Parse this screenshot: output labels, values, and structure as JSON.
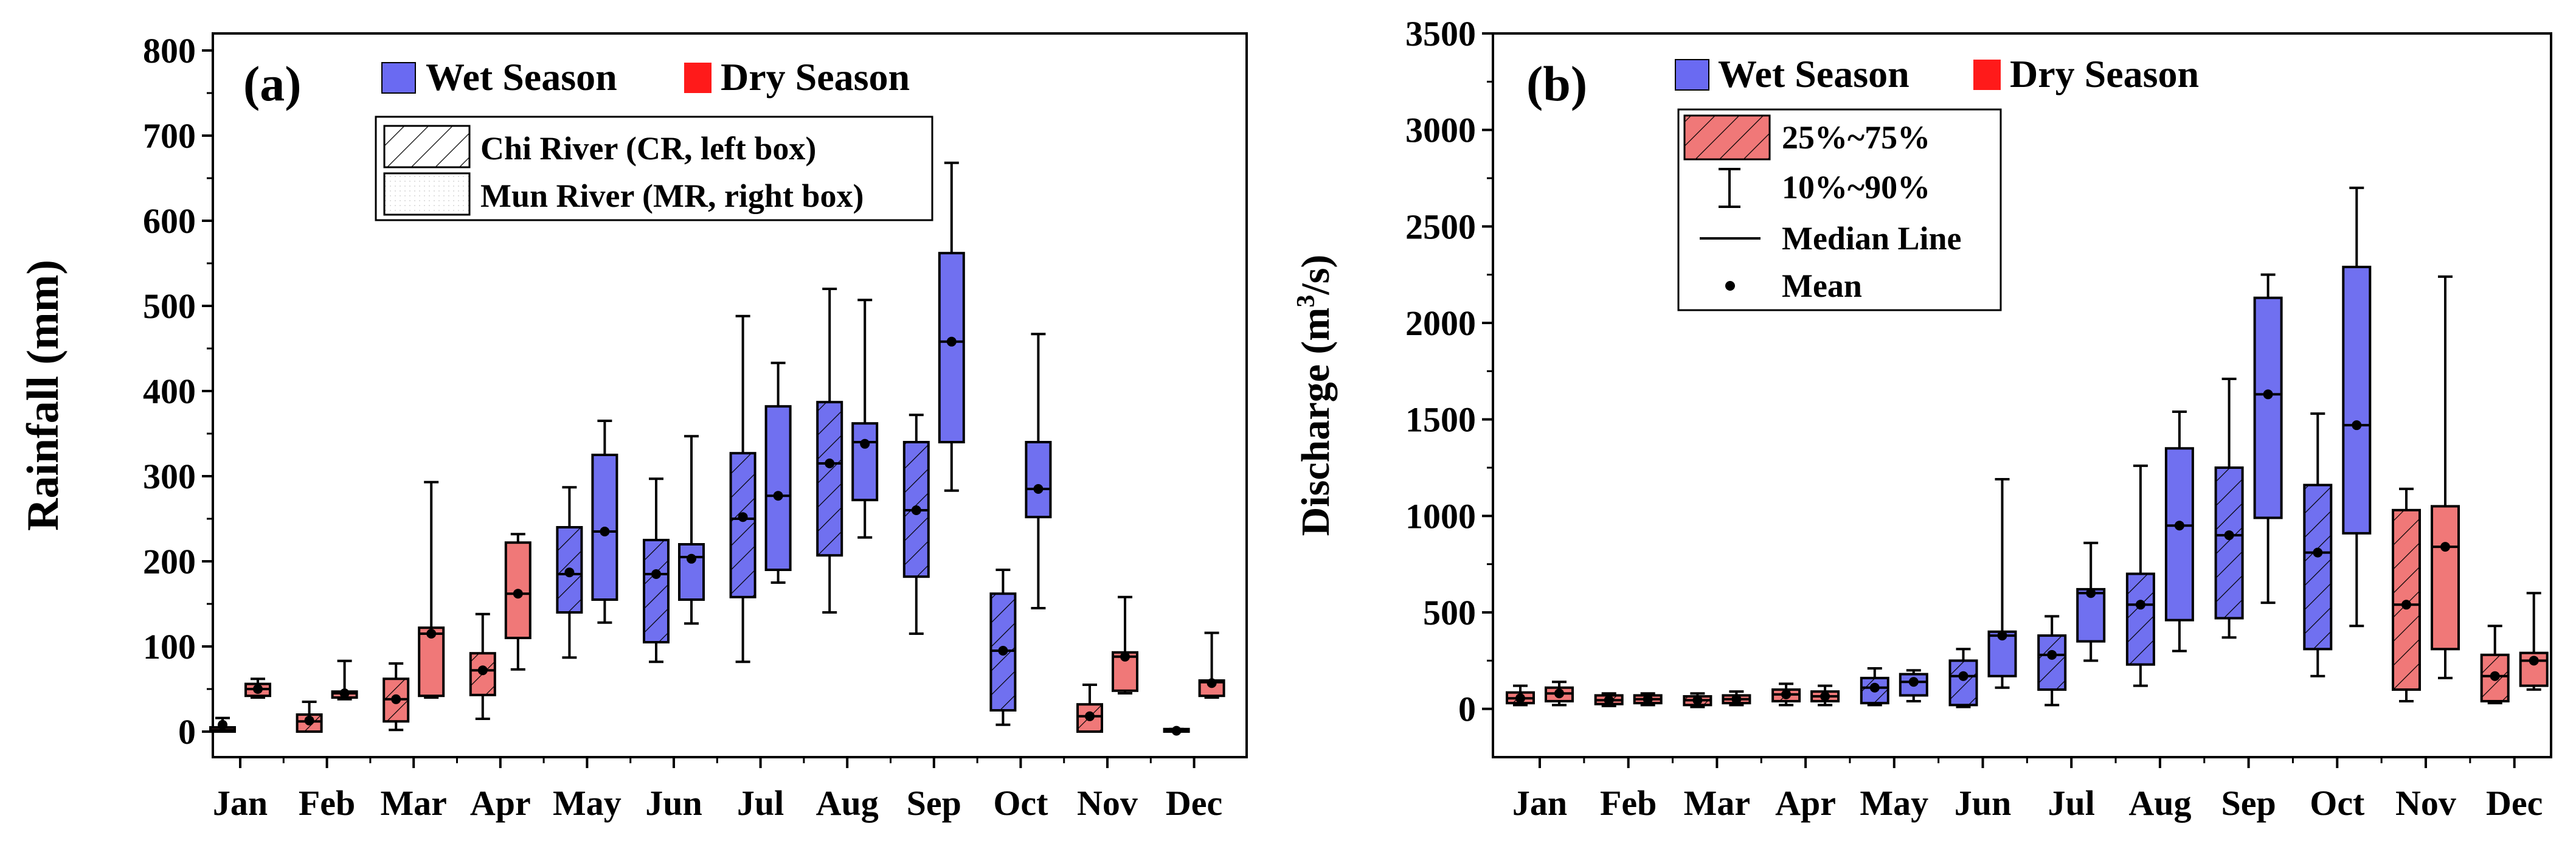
{
  "colors": {
    "wet": "#7070F0",
    "dry": "#F07878",
    "wet_legend": "#6A6AF2",
    "dry_legend": "#FF1A1A",
    "mun_fill": "#F7F7F7"
  },
  "legend_common": {
    "wet": "Wet Season",
    "dry": "Dry Season"
  },
  "months": [
    "Jan",
    "Feb",
    "Mar",
    "Apr",
    "May",
    "Jun",
    "Jul",
    "Aug",
    "Sep",
    "Oct",
    "Nov",
    "Dec"
  ],
  "chart_data": [
    {
      "type": "box",
      "panel_label": "(a)",
      "ylabel": "Rainfall (mm)",
      "ylim": [
        -30,
        820
      ],
      "yticks": [
        0,
        100,
        200,
        300,
        400,
        500,
        600,
        700,
        800
      ],
      "legend": {
        "cr": "Chi River (CR, left box)",
        "mr": "Mun River (MR, right box)"
      },
      "series": [
        {
          "name": "Chi River (CR, left box)",
          "river": "CR",
          "boxes": [
            {
              "month": "Jan",
              "season": "dry",
              "p10": 0,
              "q1": 0,
              "median": 2,
              "q3": 5,
              "p90": 16,
              "mean": 8
            },
            {
              "month": "Feb",
              "season": "dry",
              "p10": 0,
              "q1": 0,
              "median": 12,
              "q3": 20,
              "p90": 35,
              "mean": 13
            },
            {
              "month": "Mar",
              "season": "dry",
              "p10": 2,
              "q1": 12,
              "median": 38,
              "q3": 62,
              "p90": 80,
              "mean": 38
            },
            {
              "month": "Apr",
              "season": "dry",
              "p10": 15,
              "q1": 43,
              "median": 72,
              "q3": 92,
              "p90": 138,
              "mean": 72
            },
            {
              "month": "May",
              "season": "wet",
              "p10": 87,
              "q1": 140,
              "median": 185,
              "q3": 240,
              "p90": 287,
              "mean": 187
            },
            {
              "month": "Jun",
              "season": "wet",
              "p10": 82,
              "q1": 105,
              "median": 185,
              "q3": 225,
              "p90": 297,
              "mean": 185
            },
            {
              "month": "Jul",
              "season": "wet",
              "p10": 82,
              "q1": 158,
              "median": 250,
              "q3": 327,
              "p90": 488,
              "mean": 252
            },
            {
              "month": "Aug",
              "season": "wet",
              "p10": 140,
              "q1": 207,
              "median": 315,
              "q3": 387,
              "p90": 520,
              "mean": 315
            },
            {
              "month": "Sep",
              "season": "wet",
              "p10": 115,
              "q1": 182,
              "median": 260,
              "q3": 340,
              "p90": 372,
              "mean": 260
            },
            {
              "month": "Oct",
              "season": "wet",
              "p10": 8,
              "q1": 25,
              "median": 95,
              "q3": 162,
              "p90": 190,
              "mean": 95
            },
            {
              "month": "Nov",
              "season": "dry",
              "p10": 0,
              "q1": 0,
              "median": 18,
              "q3": 32,
              "p90": 55,
              "mean": 18
            },
            {
              "month": "Dec",
              "season": "dry",
              "p10": 0,
              "q1": 0,
              "median": 1,
              "q3": 3,
              "p90": 3,
              "mean": 1
            }
          ]
        },
        {
          "name": "Mun River (MR, right box)",
          "river": "MR",
          "boxes": [
            {
              "month": "Jan",
              "season": "dry",
              "p10": 40,
              "q1": 42,
              "median": 50,
              "q3": 56,
              "p90": 62,
              "mean": 50
            },
            {
              "month": "Feb",
              "season": "dry",
              "p10": 38,
              "q1": 40,
              "median": 45,
              "q3": 47,
              "p90": 83,
              "mean": 45
            },
            {
              "month": "Mar",
              "season": "dry",
              "p10": 40,
              "q1": 42,
              "median": 115,
              "q3": 122,
              "p90": 293,
              "mean": 115
            },
            {
              "month": "Apr",
              "season": "dry",
              "p10": 73,
              "q1": 110,
              "median": 162,
              "q3": 222,
              "p90": 232,
              "mean": 162
            },
            {
              "month": "May",
              "season": "wet",
              "p10": 128,
              "q1": 155,
              "median": 235,
              "q3": 325,
              "p90": 365,
              "mean": 235
            },
            {
              "month": "Jun",
              "season": "wet",
              "p10": 127,
              "q1": 155,
              "median": 205,
              "q3": 220,
              "p90": 347,
              "mean": 203
            },
            {
              "month": "Jul",
              "season": "wet",
              "p10": 175,
              "q1": 190,
              "median": 277,
              "q3": 382,
              "p90": 433,
              "mean": 277
            },
            {
              "month": "Aug",
              "season": "wet",
              "p10": 228,
              "q1": 272,
              "median": 340,
              "q3": 362,
              "p90": 507,
              "mean": 338
            },
            {
              "month": "Sep",
              "season": "wet",
              "p10": 283,
              "q1": 340,
              "median": 458,
              "q3": 562,
              "p90": 668,
              "mean": 458
            },
            {
              "month": "Oct",
              "season": "wet",
              "p10": 145,
              "q1": 252,
              "median": 285,
              "q3": 340,
              "p90": 467,
              "mean": 285
            },
            {
              "month": "Nov",
              "season": "dry",
              "p10": 45,
              "q1": 48,
              "median": 88,
              "q3": 93,
              "p90": 158,
              "mean": 88
            },
            {
              "month": "Dec",
              "season": "dry",
              "p10": 40,
              "q1": 42,
              "median": 58,
              "q3": 60,
              "p90": 116,
              "mean": 57
            }
          ]
        }
      ]
    },
    {
      "type": "box",
      "panel_label": "(b)",
      "ylabel": "Discharge (m",
      "ylabel_sup": "3",
      "ylabel_tail": "/s)",
      "ylim": [
        -250,
        3500
      ],
      "yticks": [
        0,
        500,
        1000,
        1500,
        2000,
        2500,
        3000,
        3500
      ],
      "legend": {
        "box": "25%~75%",
        "whisker": "10%~90%",
        "median": "Median Line",
        "mean": "Mean"
      },
      "series": [
        {
          "name": "Chi River (CR, left box)",
          "river": "CR",
          "boxes": [
            {
              "month": "Jan",
              "season": "dry",
              "p10": 20,
              "q1": 30,
              "median": 55,
              "q3": 85,
              "p90": 120,
              "mean": 55
            },
            {
              "month": "Feb",
              "season": "dry",
              "p10": 15,
              "q1": 25,
              "median": 45,
              "q3": 70,
              "p90": 80,
              "mean": 45
            },
            {
              "month": "Mar",
              "season": "dry",
              "p10": 10,
              "q1": 20,
              "median": 45,
              "q3": 65,
              "p90": 80,
              "mean": 45
            },
            {
              "month": "Apr",
              "season": "dry",
              "p10": 20,
              "q1": 40,
              "median": 75,
              "q3": 100,
              "p90": 130,
              "mean": 75
            },
            {
              "month": "May",
              "season": "wet",
              "p10": 20,
              "q1": 30,
              "median": 110,
              "q3": 160,
              "p90": 210,
              "mean": 110
            },
            {
              "month": "Jun",
              "season": "wet",
              "p10": 10,
              "q1": 20,
              "median": 170,
              "q3": 250,
              "p90": 310,
              "mean": 170
            },
            {
              "month": "Jul",
              "season": "wet",
              "p10": 20,
              "q1": 100,
              "median": 280,
              "q3": 380,
              "p90": 480,
              "mean": 280
            },
            {
              "month": "Aug",
              "season": "wet",
              "p10": 120,
              "q1": 230,
              "median": 540,
              "q3": 700,
              "p90": 1260,
              "mean": 540
            },
            {
              "month": "Sep",
              "season": "wet",
              "p10": 370,
              "q1": 470,
              "median": 900,
              "q3": 1250,
              "p90": 1710,
              "mean": 900
            },
            {
              "month": "Oct",
              "season": "wet",
              "p10": 170,
              "q1": 310,
              "median": 810,
              "q3": 1160,
              "p90": 1530,
              "mean": 810
            },
            {
              "month": "Nov",
              "season": "dry",
              "p10": 40,
              "q1": 100,
              "median": 540,
              "q3": 1030,
              "p90": 1140,
              "mean": 540
            },
            {
              "month": "Dec",
              "season": "dry",
              "p10": 30,
              "q1": 40,
              "median": 170,
              "q3": 280,
              "p90": 430,
              "mean": 170
            }
          ]
        },
        {
          "name": "Mun River (MR, right box)",
          "river": "MR",
          "boxes": [
            {
              "month": "Jan",
              "season": "dry",
              "p10": 20,
              "q1": 40,
              "median": 80,
              "q3": 110,
              "p90": 140,
              "mean": 80
            },
            {
              "month": "Feb",
              "season": "dry",
              "p10": 20,
              "q1": 30,
              "median": 50,
              "q3": 70,
              "p90": 80,
              "mean": 50
            },
            {
              "month": "Mar",
              "season": "dry",
              "p10": 20,
              "q1": 30,
              "median": 50,
              "q3": 70,
              "p90": 90,
              "mean": 50
            },
            {
              "month": "Apr",
              "season": "dry",
              "p10": 20,
              "q1": 40,
              "median": 65,
              "q3": 90,
              "p90": 120,
              "mean": 65
            },
            {
              "month": "May",
              "season": "wet",
              "p10": 40,
              "q1": 70,
              "median": 140,
              "q3": 180,
              "p90": 200,
              "mean": 140
            },
            {
              "month": "Jun",
              "season": "wet",
              "p10": 110,
              "q1": 170,
              "median": 380,
              "q3": 400,
              "p90": 1190,
              "mean": 380
            },
            {
              "month": "Jul",
              "season": "wet",
              "p10": 250,
              "q1": 350,
              "median": 600,
              "q3": 620,
              "p90": 860,
              "mean": 600
            },
            {
              "month": "Aug",
              "season": "wet",
              "p10": 300,
              "q1": 460,
              "median": 950,
              "q3": 1350,
              "p90": 1540,
              "mean": 950
            },
            {
              "month": "Sep",
              "season": "wet",
              "p10": 550,
              "q1": 990,
              "median": 1630,
              "q3": 2130,
              "p90": 2250,
              "mean": 1630
            },
            {
              "month": "Oct",
              "season": "wet",
              "p10": 430,
              "q1": 910,
              "median": 1470,
              "q3": 2290,
              "p90": 2700,
              "mean": 1470
            },
            {
              "month": "Nov",
              "season": "dry",
              "p10": 160,
              "q1": 310,
              "median": 840,
              "q3": 1050,
              "p90": 2240,
              "mean": 840
            },
            {
              "month": "Dec",
              "season": "dry",
              "p10": 100,
              "q1": 120,
              "median": 250,
              "q3": 290,
              "p90": 600,
              "mean": 250
            }
          ]
        }
      ]
    }
  ]
}
